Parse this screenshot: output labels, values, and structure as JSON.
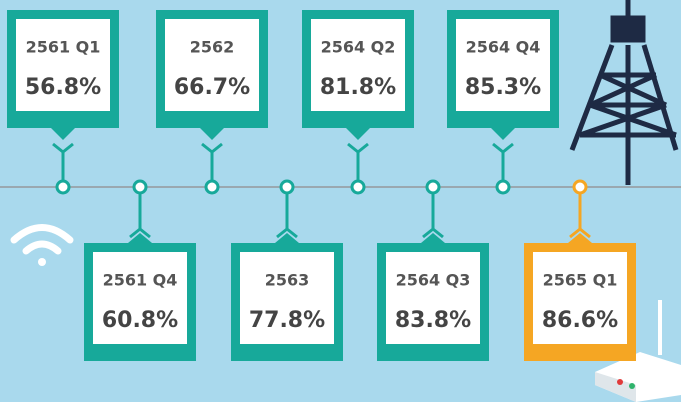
{
  "items": [
    {
      "period": "2561 Q1",
      "value": "56.8%",
      "color": "#17a99a"
    },
    {
      "period": "2561 Q4",
      "value": "60.8%",
      "color": "#17a99a"
    },
    {
      "period": "2562",
      "value": "66.7%",
      "color": "#17a99a"
    },
    {
      "period": "2563",
      "value": "77.8%",
      "color": "#17a99a"
    },
    {
      "period": "2564 Q2",
      "value": "81.8%",
      "color": "#17a99a"
    },
    {
      "period": "2564 Q3",
      "value": "83.8%",
      "color": "#17a99a"
    },
    {
      "period": "2564 Q4",
      "value": "85.3%",
      "color": "#17a99a"
    },
    {
      "period": "2565 Q1",
      "value": "86.6%",
      "color": "#f5a623"
    }
  ]
}
